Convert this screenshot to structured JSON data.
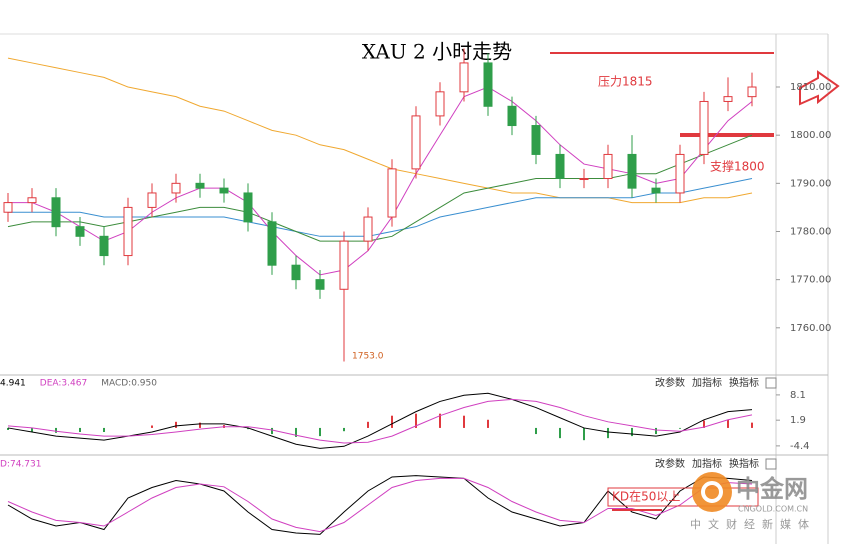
{
  "chart_data": [
    {
      "type": "candlestick",
      "title": "XAU 2 小时走势",
      "open": [
        1784,
        1786,
        1787,
        1781,
        1779,
        1775,
        1785,
        1788,
        1790,
        1789,
        1788,
        1782,
        1773,
        1770,
        1768,
        1778,
        1783,
        1793,
        1804,
        1809,
        1815,
        1806,
        1802,
        1796,
        1791,
        1791,
        1796,
        1789,
        1788,
        1796,
        1807,
        1808
      ],
      "high": [
        1788,
        1789,
        1789,
        1783,
        1781,
        1787,
        1790,
        1792,
        1792,
        1791,
        1790,
        1784,
        1775,
        1772,
        1780,
        1785,
        1795,
        1806,
        1811,
        1818,
        1817,
        1808,
        1804,
        1798,
        1793,
        1798,
        1800,
        1791,
        1798,
        1809,
        1812,
        1813
      ],
      "low": [
        1782,
        1784,
        1779,
        1777,
        1773,
        1773,
        1783,
        1786,
        1787,
        1786,
        1780,
        1771,
        1768,
        1766,
        1753,
        1776,
        1781,
        1791,
        1802,
        1807,
        1804,
        1800,
        1794,
        1789,
        1789,
        1789,
        1787,
        1786,
        1786,
        1794,
        1805,
        1806
      ],
      "close": [
        1786,
        1787,
        1781,
        1779,
        1775,
        1785,
        1788,
        1790,
        1789,
        1788,
        1782,
        1773,
        1770,
        1768,
        1778,
        1783,
        1793,
        1804,
        1809,
        1815,
        1806,
        1802,
        1796,
        1791,
        1791,
        1796,
        1789,
        1788,
        1796,
        1807,
        1808,
        1810
      ],
      "up_color": "#e0393e",
      "down_color": "#2f9e4a",
      "series": [
        {
          "color": "#f0a830",
          "values": [
            1816,
            1815,
            1814,
            1813,
            1812,
            1810,
            1809,
            1808,
            1806,
            1805,
            1803,
            1801,
            1800,
            1798,
            1797,
            1795,
            1793,
            1792,
            1791,
            1790,
            1789,
            1788,
            1788,
            1787,
            1787,
            1787,
            1786,
            1786,
            1786,
            1787,
            1787,
            1788
          ]
        },
        {
          "color": "#3a8fd0",
          "values": [
            1784,
            1784,
            1784,
            1784,
            1783,
            1783,
            1783,
            1783,
            1783,
            1783,
            1782,
            1781,
            1780,
            1779,
            1779,
            1779,
            1780,
            1781,
            1783,
            1784,
            1785,
            1786,
            1787,
            1787,
            1787,
            1787,
            1787,
            1788,
            1788,
            1789,
            1790,
            1791
          ]
        },
        {
          "color": "#3c8c3c",
          "values": [
            1781,
            1782,
            1782,
            1782,
            1781,
            1782,
            1783,
            1784,
            1785,
            1785,
            1784,
            1782,
            1780,
            1778,
            1778,
            1778,
            1779,
            1782,
            1785,
            1788,
            1789,
            1790,
            1791,
            1791,
            1791,
            1791,
            1792,
            1792,
            1794,
            1796,
            1798,
            1800
          ]
        },
        {
          "color": "#d040c0",
          "values": [
            1786,
            1786,
            1784,
            1781,
            1778,
            1780,
            1784,
            1787,
            1789,
            1789,
            1786,
            1780,
            1775,
            1771,
            1772,
            1776,
            1783,
            1792,
            1800,
            1808,
            1810,
            1807,
            1803,
            1798,
            1794,
            1793,
            1792,
            1790,
            1791,
            1797,
            1803,
            1807
          ]
        }
      ],
      "ylim": [
        1750.2,
        1820.8
      ],
      "yticks": [
        {
          "value": 1810,
          "label": "1810.00"
        },
        {
          "value": 1800,
          "label": "1800.00"
        },
        {
          "value": 1790,
          "label": "1790.00"
        },
        {
          "value": 1780,
          "label": "1780.00"
        },
        {
          "value": 1770,
          "label": "1770.00"
        },
        {
          "value": 1760,
          "label": "1760.00"
        }
      ],
      "annotations": [
        "压力1815",
        "支撑1800",
        "1753.0"
      ]
    },
    {
      "type": "macd",
      "header": [
        "4.941",
        "DEA:3.467",
        "MACD:0.950"
      ],
      "controls": [
        "改参数",
        "加指标",
        "换指标"
      ],
      "series": [
        {
          "color": "#000000",
          "values": [
            0,
            -1,
            -2,
            -2.5,
            -3,
            -2,
            -1,
            0.5,
            1,
            1,
            0,
            -2,
            -4,
            -5,
            -4.5,
            -2,
            1,
            4,
            6.5,
            8,
            8.5,
            7,
            5,
            2.5,
            0,
            -1,
            -1.5,
            -2,
            -1,
            2,
            4,
            4.5
          ]
        },
        {
          "color": "#d040c0",
          "values": [
            0.5,
            0,
            -0.8,
            -1.5,
            -2,
            -2,
            -1.6,
            -1,
            -0.3,
            0.3,
            0.3,
            -0.5,
            -1.8,
            -3,
            -3.7,
            -3.5,
            -2,
            0.5,
            3,
            5,
            6.5,
            7,
            6.5,
            5,
            3,
            1.5,
            0.5,
            -0.5,
            -0.8,
            0.2,
            2,
            3.2
          ]
        }
      ],
      "histogram": [
        -0.5,
        -1,
        -1.2,
        -1,
        -1,
        0,
        0.6,
        1.5,
        1.3,
        0.7,
        -0.3,
        -1.5,
        -2.2,
        -2,
        -0.8,
        1.5,
        3,
        3.5,
        3.5,
        3,
        2,
        0,
        -1.5,
        -2.5,
        -3,
        -2.5,
        -2,
        -1.5,
        -0.2,
        1.8,
        2,
        1.3
      ],
      "ylim": [
        -5.9,
        9.3
      ],
      "yticks": [
        8.1,
        1.9,
        -4.4
      ]
    },
    {
      "type": "kd",
      "header": [
        "D:74.731"
      ],
      "controls": [
        "改参数",
        "加指标",
        "换指标"
      ],
      "series": [
        {
          "color": "#000000",
          "values": [
            50,
            30,
            20,
            25,
            15,
            60,
            75,
            85,
            80,
            70,
            40,
            15,
            10,
            8,
            40,
            70,
            90,
            92,
            90,
            88,
            60,
            40,
            30,
            20,
            25,
            70,
            40,
            30,
            70,
            90,
            88,
            85
          ]
        },
        {
          "color": "#d040c0",
          "values": [
            55,
            40,
            28,
            25,
            20,
            40,
            60,
            75,
            80,
            76,
            55,
            30,
            18,
            12,
            25,
            50,
            75,
            85,
            88,
            88,
            75,
            55,
            40,
            28,
            25,
            45,
            45,
            35,
            50,
            75,
            82,
            80
          ]
        }
      ],
      "ylim": [
        0,
        100
      ],
      "annotations": [
        "KD在50以上"
      ]
    }
  ],
  "watermark": {
    "name": "中金网",
    "domain": "CNGOLD.COM.CN",
    "slogan": "中文财经新媒体"
  }
}
